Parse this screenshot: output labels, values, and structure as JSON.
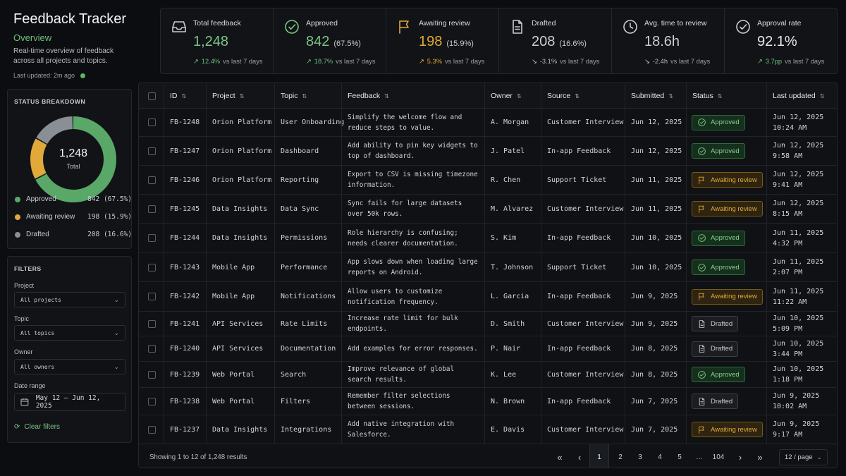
{
  "app": {
    "title": "Feedback Tracker",
    "section": "Overview",
    "description": "Real-time overview of feedback across all projects and topics.",
    "last_updated": "Last updated: 2m ago"
  },
  "status_breakdown": {
    "title": "STATUS BREAKDOWN",
    "total_value": "1,248",
    "total_label": "Total",
    "items": [
      {
        "label": "Approved",
        "value": "842 (67.5%)",
        "fraction": 0.675,
        "color": "#5aa868"
      },
      {
        "label": "Awaiting review",
        "value": "198 (15.9%)",
        "fraction": 0.159,
        "color": "#e0a93a"
      },
      {
        "label": "Drafted",
        "value": "208 (16.6%)",
        "fraction": 0.166,
        "color": "#8a8f96"
      }
    ]
  },
  "filters": {
    "title": "FILTERS",
    "project_label": "Project",
    "project_value": "All projects",
    "topic_label": "Topic",
    "topic_value": "All topics",
    "owner_label": "Owner",
    "owner_value": "All owners",
    "date_label": "Date range",
    "date_value": "May 12 – Jun 12, 2025",
    "clear_label": "Clear filters"
  },
  "kpis": [
    {
      "icon": "inbox-icon",
      "label": "Total feedback",
      "value": "1,248",
      "pct": "",
      "trend": "↗",
      "delta": "12.4%",
      "suffix": "vs last 7 days",
      "color": "#6fc17a",
      "value_color": "#7cc487"
    },
    {
      "icon": "check-circle-icon",
      "label": "Approved",
      "value": "842",
      "pct": "(67.5%)",
      "trend": "↗",
      "delta": "18.7%",
      "suffix": "vs last 7 days",
      "color": "#6fc17a",
      "value_color": "#7cc487"
    },
    {
      "icon": "flag-icon",
      "label": "Awaiting review",
      "value": "198",
      "pct": "(15.9%)",
      "trend": "↗",
      "delta": "5.3%",
      "suffix": "vs last 7 days",
      "color": "#e0a93a",
      "value_color": "#e0a93a"
    },
    {
      "icon": "document-icon",
      "label": "Drafted",
      "value": "208",
      "pct": "(16.6%)",
      "trend": "↘",
      "delta": "-3.1%",
      "suffix": "vs last 7 days",
      "color": "#b8bdc4",
      "value_color": "#c9cdd3"
    },
    {
      "icon": "clock-icon",
      "label": "Avg. time to review",
      "value": "18.6h",
      "pct": "",
      "trend": "↘",
      "delta": "-2.4h",
      "suffix": "vs last 7 days",
      "color": "#b8bdc4",
      "value_color": "#c9cdd3"
    },
    {
      "icon": "check-circle-icon",
      "label": "Approval rate",
      "value": "92.1%",
      "pct": "",
      "trend": "↗",
      "delta": "3.7pp",
      "suffix": "vs last 7 days",
      "color": "#6fc17a",
      "value_color": "#e6e8eb"
    }
  ],
  "table": {
    "columns": [
      "ID",
      "Project",
      "Topic",
      "Feedback",
      "Owner",
      "Source",
      "Submitted",
      "Status",
      "Last updated"
    ],
    "rows": [
      {
        "id": "FB-1248",
        "project": "Orion Platform",
        "topic": "User Onboarding",
        "feedback": "Simplify the welcome flow and reduce steps to value.",
        "owner": "A. Morgan",
        "source": "Customer Interview",
        "submitted": "Jun 12, 2025",
        "status": "Approved",
        "updated": "Jun 12, 2025 10:24 AM"
      },
      {
        "id": "FB-1247",
        "project": "Orion Platform",
        "topic": "Dashboard",
        "feedback": "Add ability to pin key widgets to top of dashboard.",
        "owner": "J. Patel",
        "source": "In-app Feedback",
        "submitted": "Jun 12, 2025",
        "status": "Approved",
        "updated": "Jun 12, 2025 9:58 AM"
      },
      {
        "id": "FB-1246",
        "project": "Orion Platform",
        "topic": "Reporting",
        "feedback": "Export to CSV is missing timezone information.",
        "owner": "R. Chen",
        "source": "Support Ticket",
        "submitted": "Jun 11, 2025",
        "status": "Awaiting review",
        "updated": "Jun 12, 2025 9:41 AM"
      },
      {
        "id": "FB-1245",
        "project": "Data Insights",
        "topic": "Data Sync",
        "feedback": "Sync fails for large datasets over 50k rows.",
        "owner": "M. Alvarez",
        "source": "Customer Interview",
        "submitted": "Jun 11, 2025",
        "status": "Awaiting review",
        "updated": "Jun 12, 2025 8:15 AM"
      },
      {
        "id": "FB-1244",
        "project": "Data Insights",
        "topic": "Permissions",
        "feedback": "Role hierarchy is confusing; needs clearer documentation.",
        "owner": "S. Kim",
        "source": "In-app Feedback",
        "submitted": "Jun 10, 2025",
        "status": "Approved",
        "updated": "Jun 11, 2025 4:32 PM"
      },
      {
        "id": "FB-1243",
        "project": "Mobile App",
        "topic": "Performance",
        "feedback": "App slows down when loading large reports on Android.",
        "owner": "T. Johnson",
        "source": "Support Ticket",
        "submitted": "Jun 10, 2025",
        "status": "Approved",
        "updated": "Jun 11, 2025 2:07 PM"
      },
      {
        "id": "FB-1242",
        "project": "Mobile App",
        "topic": "Notifications",
        "feedback": "Allow users to customize notification frequency.",
        "owner": "L. Garcia",
        "source": "In-app Feedback",
        "submitted": "Jun 9, 2025",
        "status": "Awaiting review",
        "updated": "Jun 11, 2025 11:22 AM"
      },
      {
        "id": "FB-1241",
        "project": "API Services",
        "topic": "Rate Limits",
        "feedback": "Increase rate limit for bulk endpoints.",
        "owner": "D. Smith",
        "source": "Customer Interview",
        "submitted": "Jun 9, 2025",
        "status": "Drafted",
        "updated": "Jun 10, 2025 5:09 PM"
      },
      {
        "id": "FB-1240",
        "project": "API Services",
        "topic": "Documentation",
        "feedback": "Add examples for error responses.",
        "owner": "P. Nair",
        "source": "In-app Feedback",
        "submitted": "Jun 8, 2025",
        "status": "Drafted",
        "updated": "Jun 10, 2025 3:44 PM"
      },
      {
        "id": "FB-1239",
        "project": "Web Portal",
        "topic": "Search",
        "feedback": "Improve relevance of global search results.",
        "owner": "K. Lee",
        "source": "Customer Interview",
        "submitted": "Jun 8, 2025",
        "status": "Approved",
        "updated": "Jun 10, 2025 1:18 PM"
      },
      {
        "id": "FB-1238",
        "project": "Web Portal",
        "topic": "Filters",
        "feedback": "Remember filter selections between sessions.",
        "owner": "N. Brown",
        "source": "In-app Feedback",
        "submitted": "Jun 7, 2025",
        "status": "Drafted",
        "updated": "Jun 9, 2025 10:02 AM"
      },
      {
        "id": "FB-1237",
        "project": "Data Insights",
        "topic": "Integrations",
        "feedback": "Add native integration with Salesforce.",
        "owner": "E. Davis",
        "source": "Customer Interview",
        "submitted": "Jun 7, 2025",
        "status": "Awaiting review",
        "updated": "Jun 9, 2025 9:17 AM"
      }
    ]
  },
  "pagination": {
    "showing": "Showing 1 to 12 of 1,248 results",
    "first": "«",
    "prev": "‹",
    "pages": [
      "1",
      "2",
      "3",
      "4",
      "5",
      "…",
      "104"
    ],
    "current": "1",
    "next": "›",
    "last": "»",
    "per_page": "12 / page"
  }
}
